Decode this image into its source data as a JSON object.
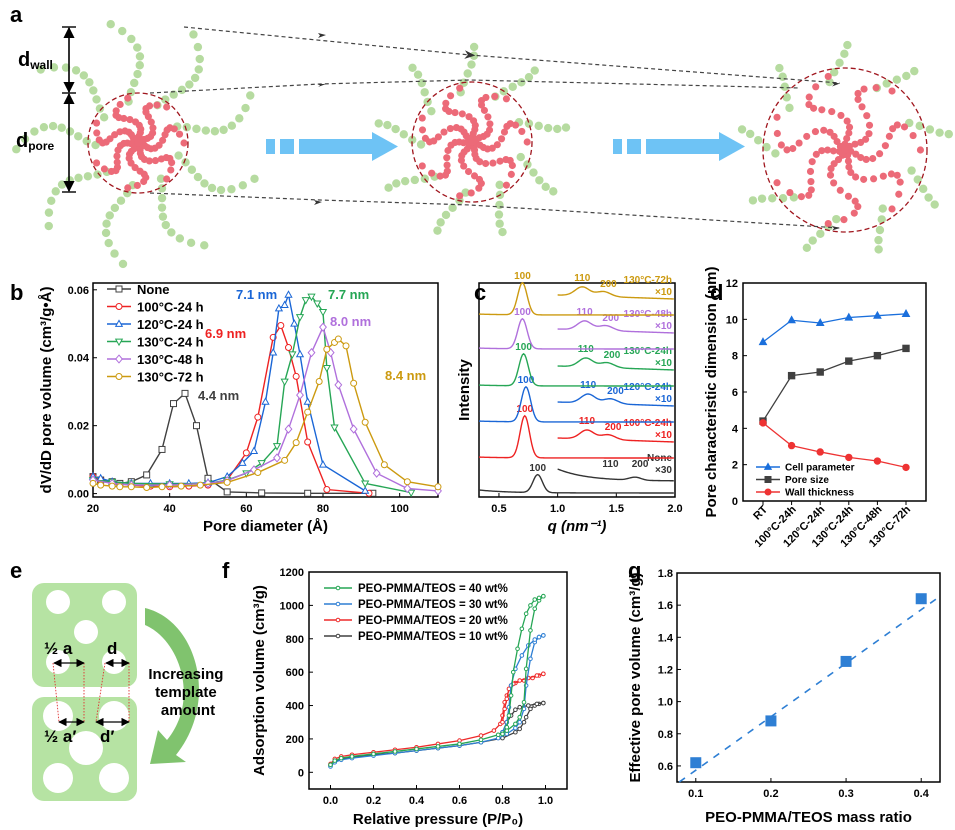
{
  "figure": {
    "panel_labels": [
      "a",
      "b",
      "c",
      "d",
      "e",
      "f",
      "g"
    ]
  },
  "schematic_a": {
    "labels": {
      "d_wall_main": "d",
      "d_wall_sub": "wall",
      "d_pore_main": "d",
      "d_pore_sub": "pore"
    },
    "colors": {
      "shell": "#b6dba0",
      "core": "#ec6a78",
      "pore_outline": "#a0161e",
      "arrow": "#6ec3f5"
    }
  },
  "schematic_e": {
    "labels": {
      "half_a": "½ a",
      "d": "d",
      "half_a_prime": "½ a′",
      "d_prime": "d′",
      "caption_lines": [
        "Increasing",
        "template",
        "amount"
      ]
    },
    "colors": {
      "block": "#b6e3a3",
      "arrow": "#5fb54a"
    }
  },
  "chart_data": [
    {
      "id": "b",
      "type": "line",
      "title": "",
      "xlabel": "Pore diameter (Å)",
      "ylabel": "dV/dD pore volume (cm³/g•Å)",
      "xlim": [
        20,
        110
      ],
      "ylim": [
        -0.001,
        0.062
      ],
      "xticks": [
        20,
        40,
        60,
        80,
        100
      ],
      "yticks": [
        0.0,
        0.02,
        0.04,
        0.06
      ],
      "ytick_labels": [
        "0.00",
        "0.02",
        "0.04",
        "0.06"
      ],
      "legend_position": "top-left",
      "series": [
        {
          "name": "None",
          "color": "#404040",
          "marker": "square",
          "x": [
            20,
            22,
            25,
            27,
            30,
            34,
            38,
            41,
            44,
            47,
            50,
            55,
            64,
            76,
            93
          ],
          "y": [
            0.005,
            0.004,
            0.0035,
            0.003,
            0.0035,
            0.0055,
            0.013,
            0.0265,
            0.0295,
            0.02,
            0.0045,
            0.0005,
            0.0002,
            0.0001,
            0.0001
          ],
          "annotation": "4.4 nm"
        },
        {
          "name": "100°C-24 h",
          "color": "#ee2222",
          "marker": "circle",
          "x": [
            20,
            22,
            25,
            30,
            35,
            40,
            45,
            50,
            55,
            60,
            63,
            67,
            69,
            71,
            73,
            76,
            81,
            92
          ],
          "y": [
            0.005,
            0.004,
            0.003,
            0.0025,
            0.0022,
            0.002,
            0.0022,
            0.0025,
            0.004,
            0.012,
            0.0225,
            0.046,
            0.0495,
            0.043,
            0.0345,
            0.0152,
            0.0012,
            0.0001
          ],
          "annotation": "6.9 nm"
        },
        {
          "name": "120°C-24 h",
          "color": "#1a66d6",
          "marker": "triangle-up",
          "x": [
            20,
            22,
            25,
            30,
            35,
            40,
            45,
            50,
            55,
            59,
            62,
            65,
            67,
            68.5,
            70,
            71,
            72.5,
            74,
            76,
            80,
            91
          ],
          "y": [
            0.005,
            0.0045,
            0.0035,
            0.003,
            0.003,
            0.003,
            0.003,
            0.0032,
            0.005,
            0.009,
            0.0125,
            0.027,
            0.0415,
            0.0545,
            0.0555,
            0.0585,
            0.05,
            0.041,
            0.027,
            0.0085,
            0.0008
          ],
          "annotation": "7.1 nm"
        },
        {
          "name": "130°C-24 h",
          "color": "#26a655",
          "marker": "triangle-down",
          "x": [
            20,
            25,
            30,
            40,
            50,
            55,
            60,
            64,
            68,
            70,
            72,
            74,
            75.5,
            77,
            78.5,
            80,
            81,
            83,
            91,
            103
          ],
          "y": [
            0.004,
            0.0035,
            0.003,
            0.0028,
            0.003,
            0.004,
            0.006,
            0.009,
            0.014,
            0.033,
            0.041,
            0.052,
            0.057,
            0.058,
            0.056,
            0.0535,
            0.037,
            0.0195,
            0.003,
            0.0003
          ],
          "annotation": "7.7 nm"
        },
        {
          "name": "130°C-48 h",
          "color": "#b070dc",
          "marker": "diamond",
          "x": [
            20,
            25,
            30,
            40,
            50,
            55,
            62,
            68,
            71,
            74,
            77,
            80,
            82,
            84,
            88,
            94,
            102,
            110
          ],
          "y": [
            0.004,
            0.003,
            0.0025,
            0.0025,
            0.003,
            0.0038,
            0.007,
            0.0105,
            0.019,
            0.029,
            0.0415,
            0.049,
            0.0415,
            0.032,
            0.019,
            0.006,
            0.0015,
            0.0008
          ],
          "annotation": "8.0 nm"
        },
        {
          "name": "130°C-72 h",
          "color": "#cc9a10",
          "marker": "circle",
          "x": [
            20,
            22,
            25,
            27,
            30,
            34,
            38,
            43,
            48,
            55,
            63,
            70,
            73,
            76,
            79,
            81,
            83,
            84,
            86,
            88,
            91,
            96,
            102,
            110
          ],
          "y": [
            0.003,
            0.0025,
            0.0022,
            0.002,
            0.002,
            0.0018,
            0.002,
            0.0022,
            0.0025,
            0.0033,
            0.0062,
            0.0098,
            0.015,
            0.024,
            0.033,
            0.0425,
            0.0445,
            0.0455,
            0.0435,
            0.0325,
            0.021,
            0.0085,
            0.0035,
            0.002
          ],
          "annotation": "8.4 nm"
        }
      ]
    },
    {
      "id": "c",
      "type": "line",
      "title": "",
      "xlabel": "q (nm⁻¹)",
      "ylabel": "Intensity",
      "xlim": [
        0.33,
        2.0
      ],
      "xticks": [
        0.5,
        1.0,
        1.5,
        2.0
      ],
      "xtick_labels": [
        "0.5",
        "1.0",
        "1.5",
        "2.0"
      ],
      "yticks": [],
      "note": "Stacked SAXS curves; each curve offset vertically; right segment (q ≥ 1.0) magnified",
      "series": [
        {
          "name": "None",
          "color": "#333333",
          "scale_label": "×30",
          "peak_100": 0.83,
          "peak_110": 1.45,
          "peak_200": 1.66,
          "peak_labels": [
            "100",
            "110",
            "200"
          ]
        },
        {
          "name": "100°C-24h",
          "color": "#ee2222",
          "scale_label": "×10",
          "peak_100": 0.72,
          "peak_110": 1.25,
          "peak_200": 1.43,
          "peak_labels": [
            "100",
            "110",
            "200"
          ]
        },
        {
          "name": "120°C-24h",
          "color": "#1a66d6",
          "scale_label": "×10",
          "peak_100": 0.73,
          "peak_110": 1.26,
          "peak_200": 1.45,
          "peak_labels": [
            "100",
            "110",
            "200"
          ]
        },
        {
          "name": "130°C-24h",
          "color": "#26a655",
          "scale_label": "×10",
          "peak_100": 0.71,
          "peak_110": 1.24,
          "peak_200": 1.42,
          "peak_labels": [
            "100",
            "110",
            "200"
          ]
        },
        {
          "name": "130°C-48h",
          "color": "#b070dc",
          "scale_label": "×10",
          "peak_100": 0.7,
          "peak_110": 1.23,
          "peak_200": 1.41,
          "peak_labels": [
            "100",
            "110",
            "200"
          ]
        },
        {
          "name": "130°C-72h",
          "color": "#cc9a10",
          "scale_label": "×10",
          "peak_100": 0.7,
          "peak_110": 1.21,
          "peak_200": 1.39,
          "peak_labels": [
            "100",
            "110",
            "200"
          ]
        }
      ]
    },
    {
      "id": "d",
      "type": "line",
      "title": "",
      "xlabel": "",
      "ylabel": "Pore characteristic dimension (nm)",
      "categories": [
        "RT",
        "100°C-24h",
        "120°C-24h",
        "130°C-24h",
        "130°C-48h",
        "130°C-72h"
      ],
      "ylim": [
        0,
        12
      ],
      "yticks": [
        0,
        2,
        4,
        6,
        8,
        10,
        12
      ],
      "legend_position": "bottom-left",
      "series": [
        {
          "name": "Cell parameter",
          "color": "#1a6fdc",
          "marker": "triangle-up",
          "values": [
            8.75,
            9.95,
            9.8,
            10.1,
            10.2,
            10.3
          ]
        },
        {
          "name": "Pore size",
          "color": "#404040",
          "marker": "square",
          "values": [
            4.4,
            6.9,
            7.1,
            7.7,
            8.0,
            8.4
          ]
        },
        {
          "name": "Wall thickness",
          "color": "#ee3333",
          "marker": "circle",
          "values": [
            4.3,
            3.05,
            2.7,
            2.4,
            2.2,
            1.85
          ]
        }
      ]
    },
    {
      "id": "f",
      "type": "line",
      "title": "",
      "xlabel": "Relative pressure (P/P₀)",
      "ylabel": "Adsorption volume (cm³/g)",
      "xlim": [
        -0.1,
        1.1
      ],
      "ylim": [
        -100,
        1200
      ],
      "xticks": [
        0.0,
        0.2,
        0.4,
        0.6,
        0.8,
        1.0
      ],
      "xtick_labels": [
        "0.0",
        "0.2",
        "0.4",
        "0.6",
        "0.8",
        "1.0"
      ],
      "yticks": [
        0,
        200,
        400,
        600,
        800,
        1000,
        1200
      ],
      "legend_position": "top-left",
      "series": [
        {
          "name": "PEO-PMMA/TEOS = 40 wt%",
          "color": "#26a655",
          "adsorption": {
            "x": [
              0,
              0.02,
              0.05,
              0.1,
              0.2,
              0.3,
              0.4,
              0.5,
              0.6,
              0.7,
              0.78,
              0.82,
              0.86,
              0.88,
              0.9,
              0.91,
              0.93,
              0.95,
              0.97,
              0.99
            ],
            "y": [
              45,
              70,
              85,
              95,
              110,
              125,
              140,
              155,
              170,
              195,
              225,
              250,
              290,
              330,
              420,
              620,
              850,
              980,
              1030,
              1055
            ]
          },
          "desorption": {
            "x": [
              0.99,
              0.97,
              0.95,
              0.93,
              0.91,
              0.89,
              0.87,
              0.85,
              0.84,
              0.83,
              0.82,
              0.8
            ],
            "y": [
              1055,
              1045,
              1035,
              1000,
              950,
              860,
              740,
              600,
              460,
              340,
              270,
              230
            ]
          }
        },
        {
          "name": "PEO-PMMA/TEOS = 30 wt%",
          "color": "#2e7fd4",
          "adsorption": {
            "x": [
              0,
              0.02,
              0.05,
              0.1,
              0.2,
              0.3,
              0.4,
              0.5,
              0.6,
              0.7,
              0.78,
              0.82,
              0.86,
              0.88,
              0.9,
              0.91,
              0.93,
              0.95,
              0.97,
              0.99
            ],
            "y": [
              35,
              60,
              75,
              85,
              100,
              115,
              130,
              145,
              160,
              180,
              205,
              230,
              265,
              300,
              380,
              520,
              680,
              780,
              810,
              820
            ]
          },
          "desorption": {
            "x": [
              0.99,
              0.97,
              0.95,
              0.92,
              0.89,
              0.86,
              0.84,
              0.83,
              0.82,
              0.8
            ],
            "y": [
              820,
              810,
              795,
              760,
              700,
              620,
              520,
              390,
              300,
              240
            ]
          }
        },
        {
          "name": "PEO-PMMA/TEOS = 20 wt%",
          "color": "#ee2a2a",
          "adsorption": {
            "x": [
              0,
              0.02,
              0.05,
              0.1,
              0.2,
              0.3,
              0.4,
              0.5,
              0.6,
              0.7,
              0.76,
              0.79,
              0.8,
              0.81,
              0.82,
              0.84,
              0.86,
              0.9,
              0.94,
              0.97,
              0.99
            ],
            "y": [
              50,
              80,
              95,
              105,
              120,
              135,
              150,
              170,
              190,
              220,
              250,
              290,
              340,
              420,
              460,
              520,
              535,
              550,
              565,
              580,
              590
            ]
          },
          "desorption": {
            "x": [
              0.99,
              0.96,
              0.92,
              0.88,
              0.85,
              0.83,
              0.82,
              0.81,
              0.8
            ],
            "y": [
              590,
              580,
              565,
              550,
              530,
              500,
              440,
              380,
              300
            ]
          }
        },
        {
          "name": "PEO-PMMA/TEOS = 10 wt%",
          "color": "#404040",
          "adsorption": {
            "x": [
              0,
              0.02,
              0.05,
              0.1,
              0.2,
              0.3,
              0.4,
              0.5,
              0.6,
              0.7,
              0.8,
              0.86,
              0.88,
              0.9,
              0.91,
              0.93,
              0.95,
              0.97,
              0.99
            ],
            "y": [
              40,
              65,
              80,
              90,
              105,
              115,
              130,
              145,
              160,
              180,
              205,
              240,
              260,
              300,
              330,
              380,
              400,
              410,
              415
            ]
          },
          "desorption": {
            "x": [
              0.99,
              0.96,
              0.92,
              0.88,
              0.86,
              0.84,
              0.82,
              0.8
            ],
            "y": [
              415,
              410,
              400,
              390,
              375,
              340,
              300,
              240
            ]
          }
        }
      ]
    },
    {
      "id": "g",
      "type": "scatter",
      "title": "",
      "xlabel": "PEO-PMMA/TEOS mass ratio",
      "ylabel": "Effective pore volume (cm³/g)",
      "xlim": [
        0.075,
        0.425
      ],
      "ylim": [
        0.5,
        1.8
      ],
      "xticks": [
        0.1,
        0.2,
        0.3,
        0.4
      ],
      "xtick_labels": [
        "0.1",
        "0.2",
        "0.3",
        "0.4"
      ],
      "yticks": [
        0.6,
        0.8,
        1.0,
        1.2,
        1.4,
        1.6,
        1.8
      ],
      "ytick_labels": [
        "0.6",
        "0.8",
        "1.0",
        "1.2",
        "1.4",
        "1.6",
        "1.8"
      ],
      "series": [
        {
          "name": "Effective pore volume",
          "color": "#2e7fd4",
          "marker": "square",
          "x": [
            0.1,
            0.2,
            0.3,
            0.4
          ],
          "y": [
            0.62,
            0.88,
            1.25,
            1.64
          ]
        }
      ],
      "fit_line": {
        "style": "dashed",
        "color": "#2e7fd4",
        "x": [
          0.078,
          0.425
        ],
        "y": [
          0.5,
          1.655
        ]
      }
    }
  ]
}
